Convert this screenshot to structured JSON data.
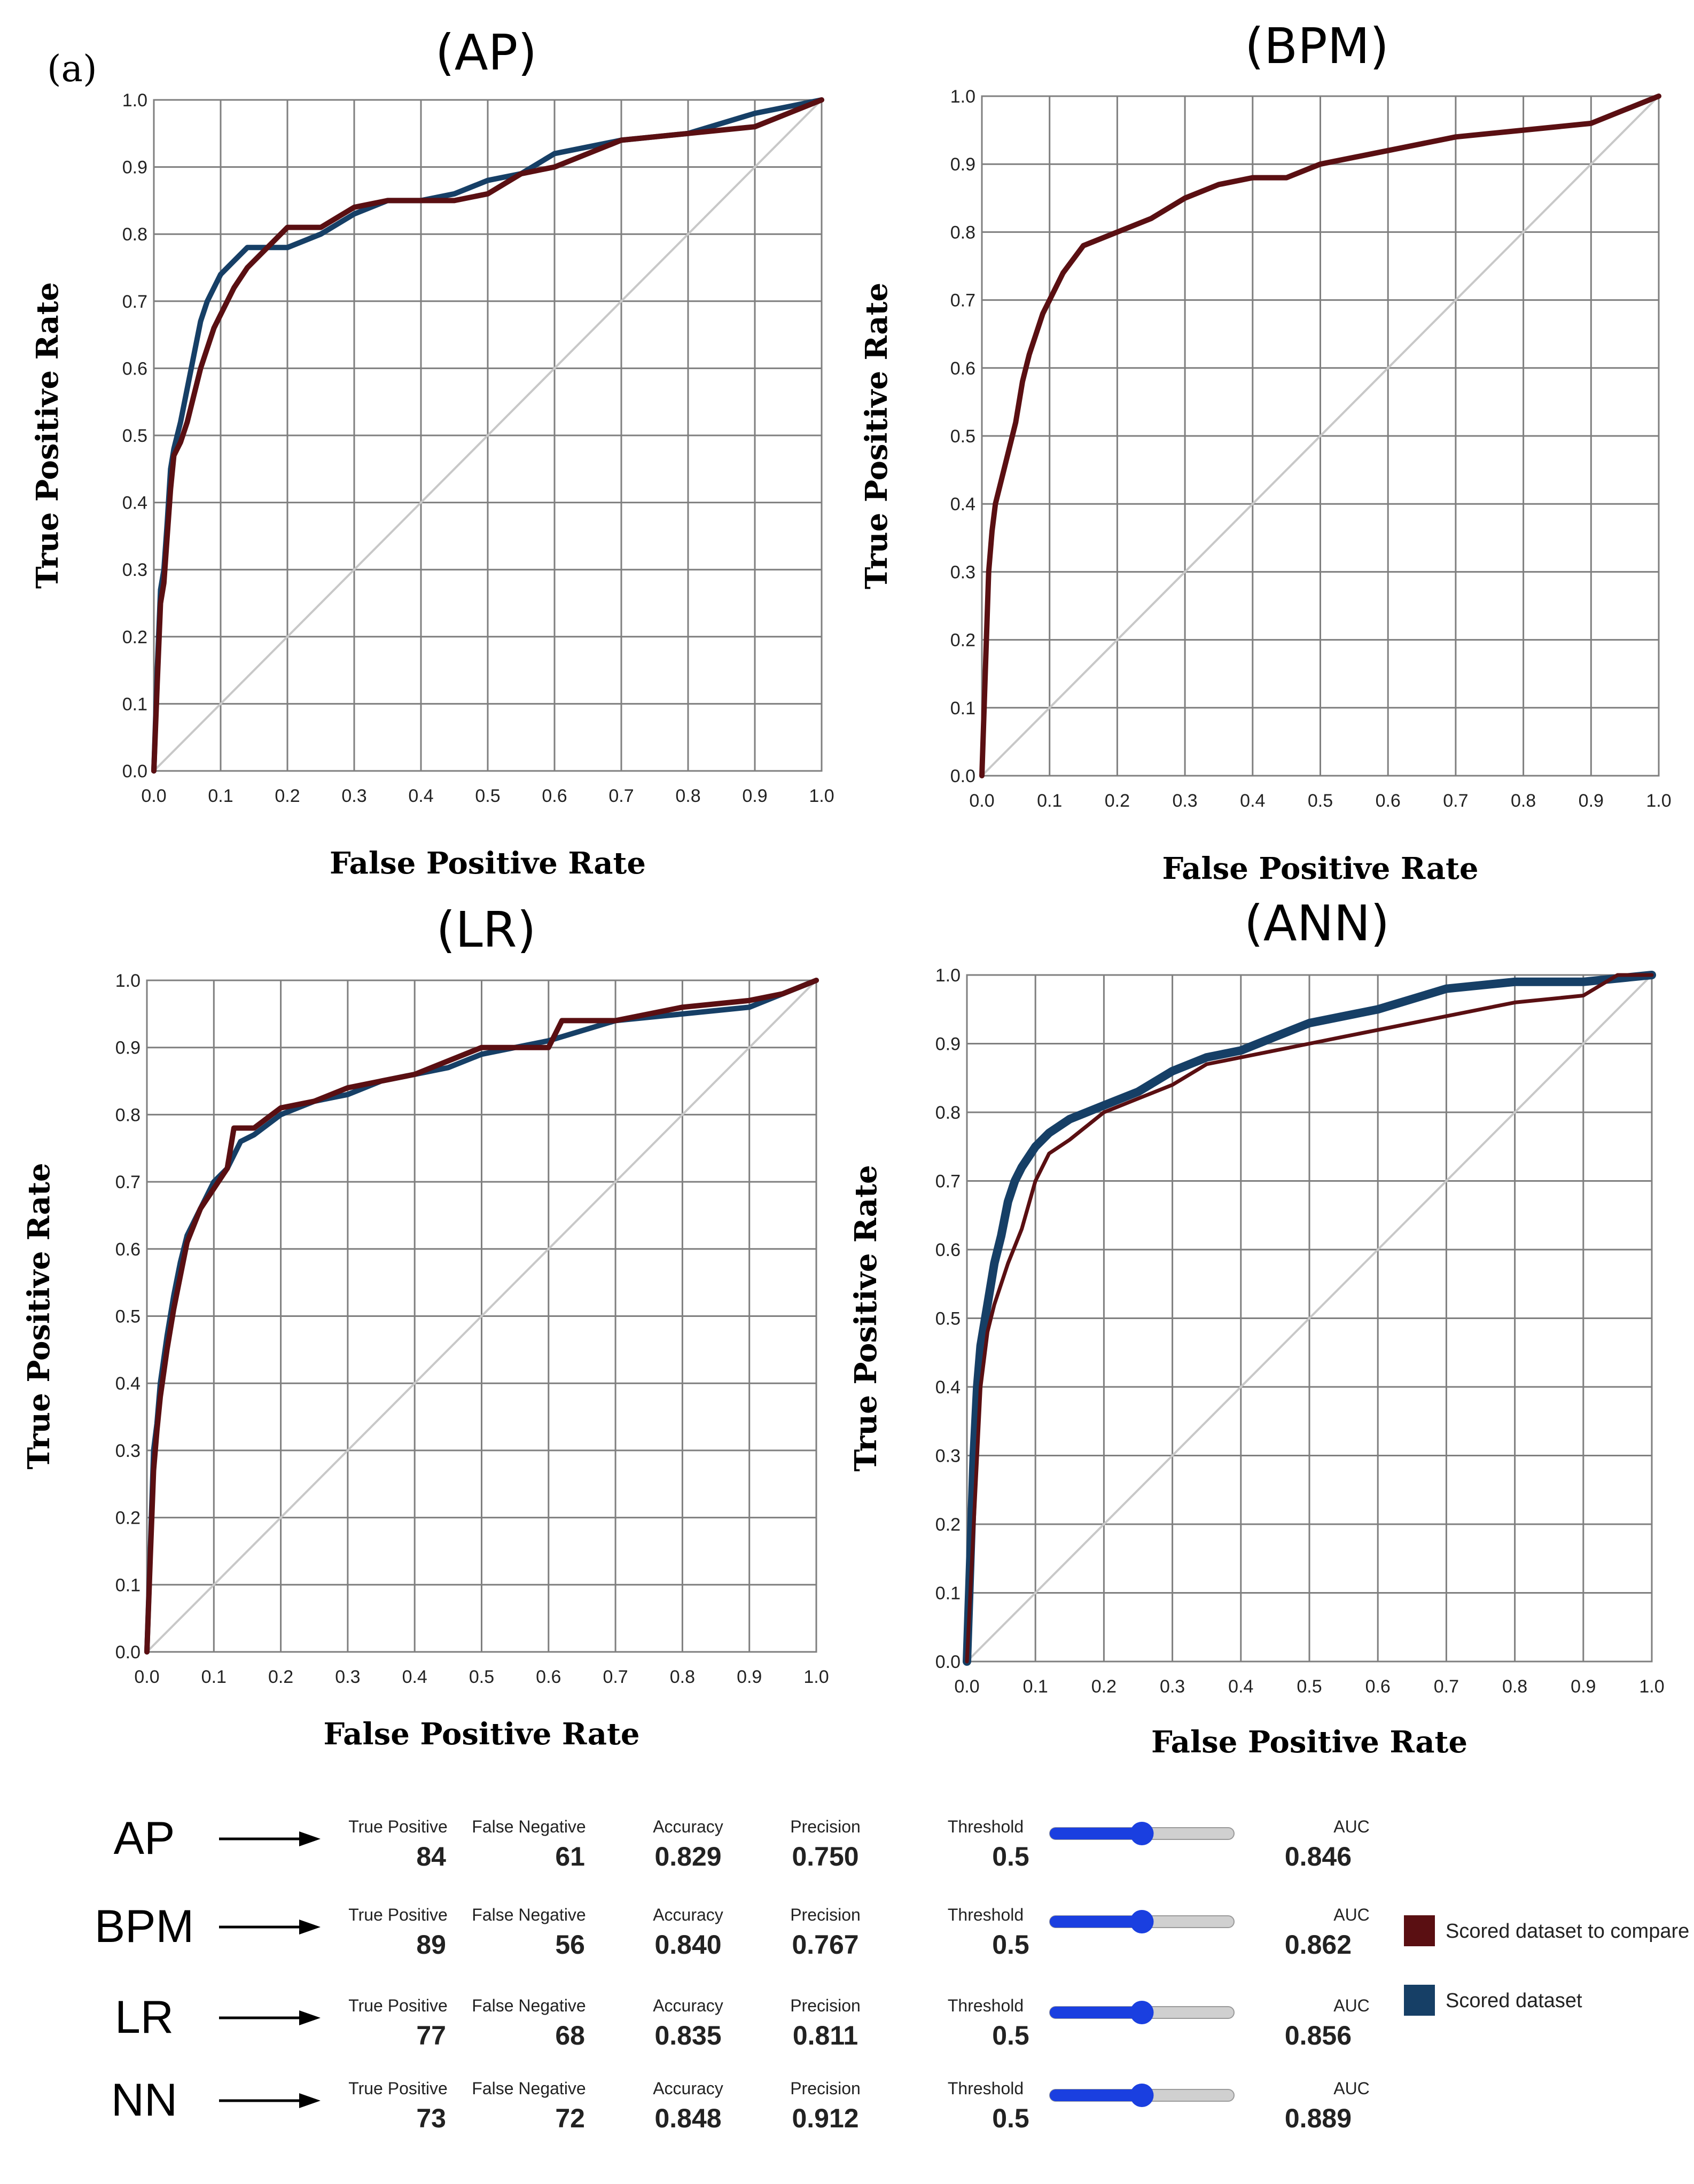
{
  "figure_label": "(a)",
  "colors": {
    "compare": "#5a0f12",
    "scored": "#163f66",
    "slider_fill": "#1a3fe0",
    "slider_track": "#d0d0d0",
    "diagonal": "#c8c8c8"
  },
  "chart_data": [
    {
      "type": "line",
      "title": "(AP)",
      "xlabel": "False Positive Rate",
      "ylabel": "True Positive Rate",
      "xlim": [
        0,
        1
      ],
      "ylim": [
        0,
        1
      ],
      "x_ticks": [
        "0.0",
        "0.1",
        "0.2",
        "0.3",
        "0.4",
        "0.5",
        "0.6",
        "0.7",
        "0.8",
        "0.9",
        "1.0"
      ],
      "y_ticks": [
        "0.0",
        "0.1",
        "0.2",
        "0.3",
        "0.4",
        "0.5",
        "0.6",
        "0.7",
        "0.8",
        "0.9",
        "1.0"
      ],
      "grid": true,
      "series": [
        {
          "name": "Scored dataset",
          "color": "#163f66",
          "x": [
            0,
            0.005,
            0.01,
            0.015,
            0.02,
            0.025,
            0.03,
            0.04,
            0.05,
            0.06,
            0.07,
            0.08,
            0.09,
            0.1,
            0.12,
            0.14,
            0.16,
            0.18,
            0.2,
            0.25,
            0.3,
            0.35,
            0.4,
            0.45,
            0.5,
            0.55,
            0.6,
            0.7,
            0.8,
            0.9,
            0.95,
            1.0
          ],
          "y": [
            0,
            0.15,
            0.27,
            0.3,
            0.37,
            0.45,
            0.48,
            0.52,
            0.57,
            0.62,
            0.67,
            0.7,
            0.72,
            0.74,
            0.76,
            0.78,
            0.78,
            0.78,
            0.78,
            0.8,
            0.83,
            0.85,
            0.85,
            0.86,
            0.88,
            0.89,
            0.92,
            0.94,
            0.95,
            0.98,
            0.99,
            1.0
          ]
        },
        {
          "name": "Scored dataset to compare",
          "color": "#5a0f12",
          "x": [
            0,
            0.005,
            0.01,
            0.015,
            0.02,
            0.025,
            0.03,
            0.04,
            0.05,
            0.06,
            0.07,
            0.08,
            0.09,
            0.1,
            0.12,
            0.14,
            0.16,
            0.18,
            0.2,
            0.25,
            0.3,
            0.35,
            0.4,
            0.45,
            0.5,
            0.55,
            0.6,
            0.7,
            0.8,
            0.9,
            0.95,
            1.0
          ],
          "y": [
            0,
            0.13,
            0.25,
            0.28,
            0.35,
            0.42,
            0.47,
            0.49,
            0.52,
            0.56,
            0.6,
            0.63,
            0.66,
            0.68,
            0.72,
            0.75,
            0.77,
            0.79,
            0.81,
            0.81,
            0.84,
            0.85,
            0.85,
            0.85,
            0.86,
            0.89,
            0.9,
            0.94,
            0.95,
            0.96,
            0.98,
            1.0
          ]
        }
      ]
    },
    {
      "type": "line",
      "title": "(BPM)",
      "xlabel": "False Positive Rate",
      "ylabel": "True Positive Rate",
      "xlim": [
        0,
        1
      ],
      "ylim": [
        0,
        1
      ],
      "x_ticks": [
        "0.0",
        "0.1",
        "0.2",
        "0.3",
        "0.4",
        "0.5",
        "0.6",
        "0.7",
        "0.8",
        "0.9",
        "1.0"
      ],
      "y_ticks": [
        "0.0",
        "0.1",
        "0.2",
        "0.3",
        "0.4",
        "0.5",
        "0.6",
        "0.7",
        "0.8",
        "0.9",
        "1.0"
      ],
      "grid": true,
      "series": [
        {
          "name": "Scored dataset to compare",
          "color": "#5a0f12",
          "x": [
            0,
            0.005,
            0.01,
            0.015,
            0.02,
            0.03,
            0.04,
            0.05,
            0.06,
            0.07,
            0.08,
            0.09,
            0.1,
            0.12,
            0.15,
            0.2,
            0.25,
            0.3,
            0.35,
            0.4,
            0.45,
            0.5,
            0.6,
            0.7,
            0.8,
            0.9,
            0.95,
            1.0
          ],
          "y": [
            0,
            0.15,
            0.3,
            0.36,
            0.4,
            0.44,
            0.48,
            0.52,
            0.58,
            0.62,
            0.65,
            0.68,
            0.7,
            0.74,
            0.78,
            0.8,
            0.82,
            0.85,
            0.87,
            0.88,
            0.88,
            0.9,
            0.92,
            0.94,
            0.95,
            0.96,
            0.98,
            1.0
          ]
        }
      ]
    },
    {
      "type": "line",
      "title": "(LR)",
      "xlabel": "False Positive Rate",
      "ylabel": "True Positive Rate",
      "xlim": [
        0,
        1
      ],
      "ylim": [
        0,
        1
      ],
      "x_ticks": [
        "0.0",
        "0.1",
        "0.2",
        "0.3",
        "0.4",
        "0.5",
        "0.6",
        "0.7",
        "0.8",
        "0.9",
        "1.0"
      ],
      "y_ticks": [
        "0.0",
        "0.1",
        "0.2",
        "0.3",
        "0.4",
        "0.5",
        "0.6",
        "0.7",
        "0.8",
        "0.9",
        "1.0"
      ],
      "grid": true,
      "series": [
        {
          "name": "Scored dataset",
          "color": "#163f66",
          "x": [
            0,
            0.005,
            0.01,
            0.015,
            0.02,
            0.03,
            0.04,
            0.05,
            0.06,
            0.08,
            0.1,
            0.12,
            0.14,
            0.16,
            0.2,
            0.25,
            0.3,
            0.35,
            0.4,
            0.45,
            0.5,
            0.55,
            0.6,
            0.7,
            0.8,
            0.9,
            0.95,
            1.0
          ],
          "y": [
            0,
            0.15,
            0.3,
            0.34,
            0.4,
            0.47,
            0.53,
            0.58,
            0.62,
            0.66,
            0.7,
            0.72,
            0.76,
            0.77,
            0.8,
            0.82,
            0.83,
            0.85,
            0.86,
            0.87,
            0.89,
            0.9,
            0.91,
            0.94,
            0.95,
            0.96,
            0.98,
            1.0
          ]
        },
        {
          "name": "Scored dataset to compare",
          "color": "#5a0f12",
          "x": [
            0,
            0.005,
            0.01,
            0.015,
            0.02,
            0.03,
            0.04,
            0.05,
            0.06,
            0.08,
            0.1,
            0.12,
            0.13,
            0.16,
            0.2,
            0.25,
            0.3,
            0.35,
            0.4,
            0.45,
            0.5,
            0.55,
            0.6,
            0.62,
            0.7,
            0.8,
            0.9,
            0.95,
            1.0
          ],
          "y": [
            0,
            0.14,
            0.27,
            0.33,
            0.38,
            0.45,
            0.51,
            0.56,
            0.61,
            0.66,
            0.69,
            0.72,
            0.78,
            0.78,
            0.81,
            0.82,
            0.84,
            0.85,
            0.86,
            0.88,
            0.9,
            0.9,
            0.9,
            0.94,
            0.94,
            0.96,
            0.97,
            0.98,
            1.0
          ]
        }
      ]
    },
    {
      "type": "line",
      "title": "(ANN)",
      "xlabel": "False Positive Rate",
      "ylabel": "True Positive Rate",
      "xlim": [
        0,
        1
      ],
      "ylim": [
        0,
        1
      ],
      "x_ticks": [
        "0.0",
        "0.1",
        "0.2",
        "0.3",
        "0.4",
        "0.5",
        "0.6",
        "0.7",
        "0.8",
        "0.9",
        "1.0"
      ],
      "y_ticks": [
        "0.0",
        "0.1",
        "0.2",
        "0.3",
        "0.4",
        "0.5",
        "0.6",
        "0.7",
        "0.8",
        "0.9",
        "1.0"
      ],
      "grid": true,
      "series": [
        {
          "name": "Scored dataset",
          "color": "#163f66",
          "x": [
            0,
            0.005,
            0.01,
            0.015,
            0.02,
            0.03,
            0.04,
            0.05,
            0.06,
            0.07,
            0.08,
            0.1,
            0.12,
            0.15,
            0.2,
            0.25,
            0.3,
            0.35,
            0.4,
            0.45,
            0.5,
            0.55,
            0.6,
            0.7,
            0.8,
            0.9,
            1.0
          ],
          "y": [
            0,
            0.15,
            0.3,
            0.4,
            0.46,
            0.52,
            0.58,
            0.62,
            0.67,
            0.7,
            0.72,
            0.75,
            0.77,
            0.79,
            0.81,
            0.83,
            0.86,
            0.88,
            0.89,
            0.91,
            0.93,
            0.94,
            0.95,
            0.98,
            0.99,
            0.99,
            1.0
          ]
        },
        {
          "name": "Scored dataset to compare",
          "color": "#5a0f12",
          "x": [
            0,
            0.005,
            0.01,
            0.015,
            0.02,
            0.03,
            0.04,
            0.05,
            0.06,
            0.08,
            0.1,
            0.12,
            0.15,
            0.2,
            0.25,
            0.3,
            0.35,
            0.4,
            0.45,
            0.5,
            0.55,
            0.6,
            0.7,
            0.8,
            0.9,
            0.95,
            1.0
          ],
          "y": [
            0,
            0.1,
            0.2,
            0.3,
            0.4,
            0.48,
            0.52,
            0.55,
            0.58,
            0.63,
            0.7,
            0.74,
            0.76,
            0.8,
            0.82,
            0.84,
            0.87,
            0.88,
            0.89,
            0.9,
            0.91,
            0.92,
            0.94,
            0.96,
            0.97,
            1.0,
            1.0
          ]
        }
      ]
    }
  ],
  "summary": {
    "rows": [
      {
        "model": "AP",
        "true_positive_label": "True Positive",
        "true_positive": "84",
        "false_negative_label": "False Negative",
        "false_negative": "61",
        "accuracy_label": "Accuracy",
        "accuracy": "0.829",
        "precision_label": "Precision",
        "precision": "0.750",
        "threshold_label": "Threshold",
        "threshold": "0.5",
        "slider_value": 0.5,
        "auc_label": "AUC",
        "auc": "0.846"
      },
      {
        "model": "BPM",
        "true_positive_label": "True Positive",
        "true_positive": "89",
        "false_negative_label": "False Negative",
        "false_negative": "56",
        "accuracy_label": "Accuracy",
        "accuracy": "0.840",
        "precision_label": "Precision",
        "precision": "0.767",
        "threshold_label": "Threshold",
        "threshold": "0.5",
        "slider_value": 0.5,
        "auc_label": "AUC",
        "auc": "0.862"
      },
      {
        "model": "LR",
        "true_positive_label": "True Positive",
        "true_positive": "77",
        "false_negative_label": "False Negative",
        "false_negative": "68",
        "accuracy_label": "Accuracy",
        "accuracy": "0.835",
        "precision_label": "Precision",
        "precision": "0.811",
        "threshold_label": "Threshold",
        "threshold": "0.5",
        "slider_value": 0.5,
        "auc_label": "AUC",
        "auc": "0.856"
      },
      {
        "model": "NN",
        "true_positive_label": "True Positive",
        "true_positive": "73",
        "false_negative_label": "False Negative",
        "false_negative": "72",
        "accuracy_label": "Accuracy",
        "accuracy": "0.848",
        "precision_label": "Precision",
        "precision": "0.912",
        "threshold_label": "Threshold",
        "threshold": "0.5",
        "slider_value": 0.5,
        "auc_label": "AUC",
        "auc": "0.889"
      }
    ]
  },
  "legend": [
    {
      "label": "Scored dataset to compare",
      "color": "#5a0f12"
    },
    {
      "label": "Scored dataset",
      "color": "#163f66"
    }
  ]
}
